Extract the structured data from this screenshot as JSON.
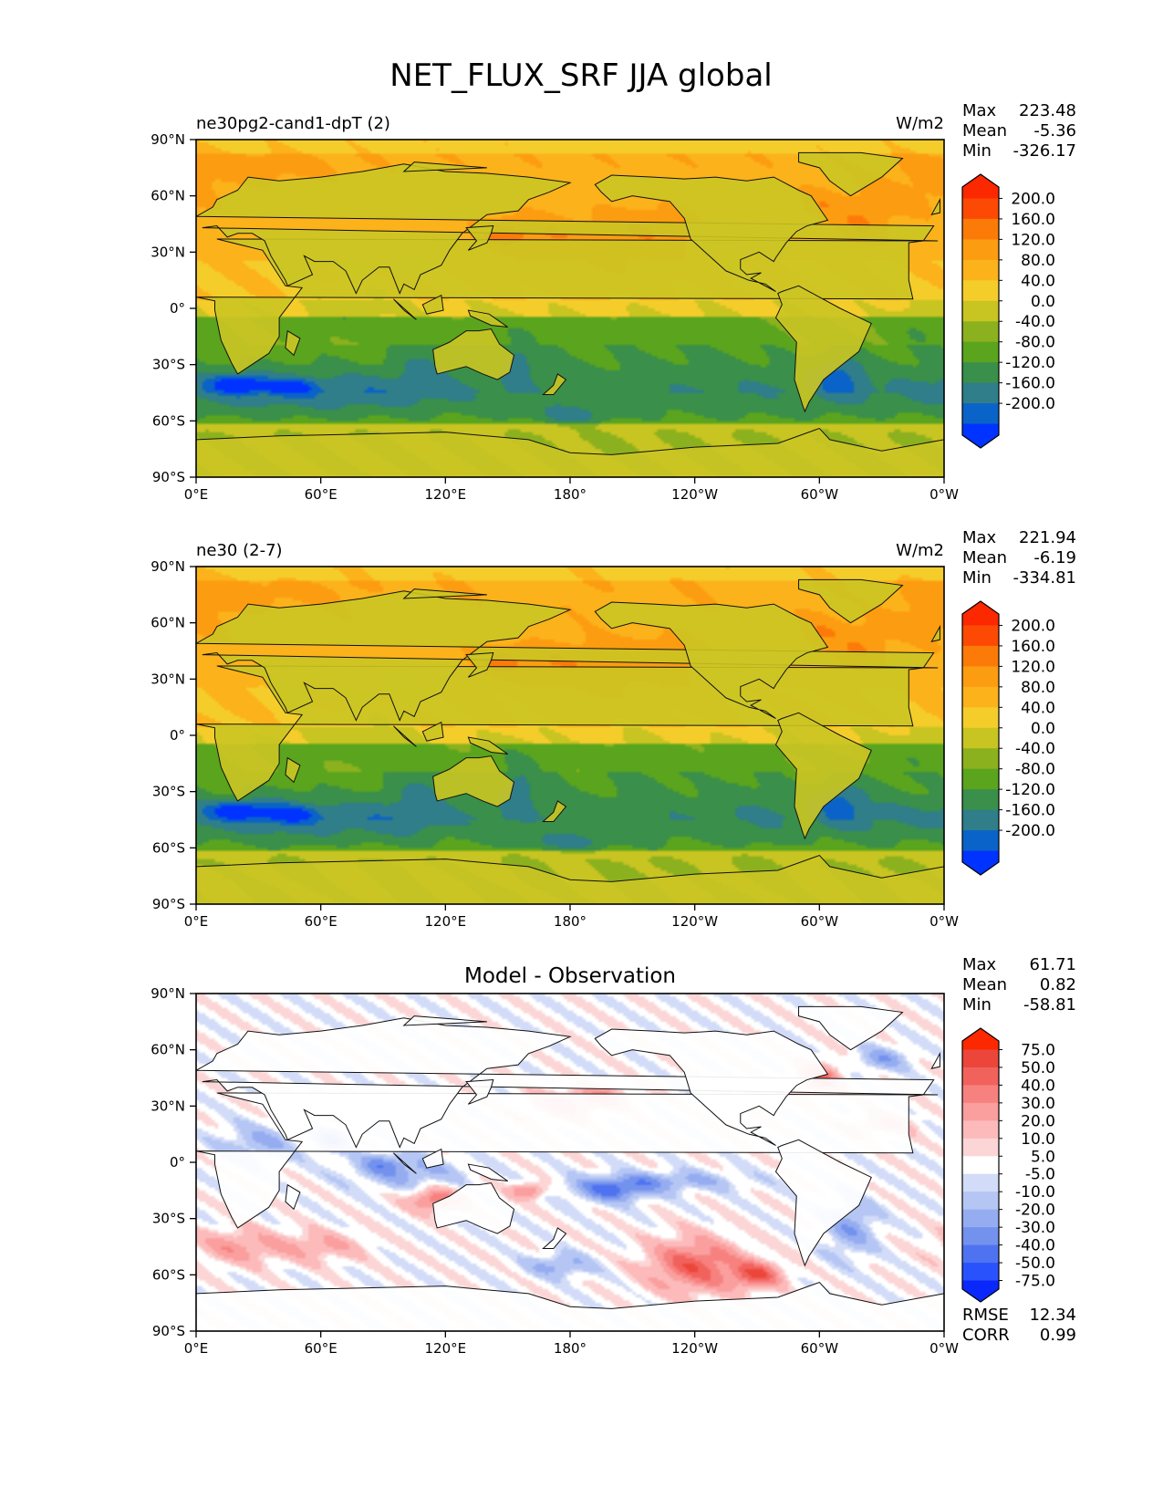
{
  "figure": {
    "title": "NET_FLUX_SRF JJA global"
  },
  "colors": {
    "continuous_scale": [
      "#0033ff",
      "#0a63c8",
      "#2f7e8a",
      "#3a8f4a",
      "#5aa41e",
      "#8cb11e",
      "#c8c421",
      "#f5cd2b",
      "#fcb21a",
      "#fc9c10",
      "#fc7a08",
      "#fc4a04",
      "#fc2800"
    ],
    "diff_scale": [
      "#0a28fc",
      "#2a52fc",
      "#4f73f0",
      "#7392ee",
      "#95adf0",
      "#b5c6f4",
      "#d2dcf8",
      "#ffffff",
      "#fcd6d6",
      "#fcbaba",
      "#fa9e9e",
      "#f7817f",
      "#f2625c",
      "#ec453a",
      "#fc2800"
    ],
    "land_continuous": "#cbc524",
    "land_diff": "#ffffff"
  },
  "panels": [
    {
      "id": "test",
      "left_title": "ne30pg2-cand1-dpT (2)",
      "center_title": "",
      "units": "W/m2",
      "stats": {
        "max_label": "Max",
        "max": "223.48",
        "mean_label": "Mean",
        "mean": "-5.36",
        "min_label": "Min",
        "min": "-326.17"
      }
    },
    {
      "id": "ref",
      "left_title": "ne30 (2-7)",
      "center_title": "",
      "units": "W/m2",
      "stats": {
        "max_label": "Max",
        "max": "221.94",
        "mean_label": "Mean",
        "mean": "-6.19",
        "min_label": "Min",
        "min": "-334.81"
      }
    },
    {
      "id": "diff",
      "left_title": "",
      "center_title": "Model - Observation",
      "units": "",
      "stats": {
        "max_label": "Max",
        "max": "61.71",
        "mean_label": "Mean",
        "mean": "0.82",
        "min_label": "Min",
        "min": "-58.81"
      },
      "extra_stats": {
        "rmse_label": "RMSE",
        "rmse": "12.34",
        "corr_label": "CORR",
        "corr": "0.99"
      }
    }
  ],
  "chart_data": [
    {
      "type": "heatmap",
      "title": "ne30pg2-cand1-dpT (2)",
      "units": "W/m2",
      "x_ticks": [
        "0°E",
        "60°E",
        "120°E",
        "180°",
        "120°W",
        "60°W",
        "0°W"
      ],
      "y_ticks": [
        "90°N",
        "60°N",
        "30°N",
        "0°",
        "30°S",
        "60°S",
        "90°S"
      ],
      "xlim": [
        0,
        360
      ],
      "ylim": [
        -90,
        90
      ],
      "colorbar_levels": [
        "200.0",
        "160.0",
        "120.0",
        "80.0",
        "40.0",
        "0.0",
        "-40.0",
        "-80.0",
        "-120.0",
        "-160.0",
        "-200.0"
      ],
      "colorbar_extend": "both",
      "stats": {
        "max": 223.48,
        "mean": -5.36,
        "min": -326.17
      }
    },
    {
      "type": "heatmap",
      "title": "ne30 (2-7)",
      "units": "W/m2",
      "x_ticks": [
        "0°E",
        "60°E",
        "120°E",
        "180°",
        "120°W",
        "60°W",
        "0°W"
      ],
      "y_ticks": [
        "90°N",
        "60°N",
        "30°N",
        "0°",
        "30°S",
        "60°S",
        "90°S"
      ],
      "xlim": [
        0,
        360
      ],
      "ylim": [
        -90,
        90
      ],
      "colorbar_levels": [
        "200.0",
        "160.0",
        "120.0",
        "80.0",
        "40.0",
        "0.0",
        "-40.0",
        "-80.0",
        "-120.0",
        "-160.0",
        "-200.0"
      ],
      "colorbar_extend": "both",
      "stats": {
        "max": 221.94,
        "mean": -6.19,
        "min": -334.81
      }
    },
    {
      "type": "heatmap",
      "title": "Model - Observation",
      "units": "",
      "x_ticks": [
        "0°E",
        "60°E",
        "120°E",
        "180°",
        "120°W",
        "60°W",
        "0°W"
      ],
      "y_ticks": [
        "90°N",
        "60°N",
        "30°N",
        "0°",
        "30°S",
        "60°S",
        "90°S"
      ],
      "xlim": [
        0,
        360
      ],
      "ylim": [
        -90,
        90
      ],
      "colorbar_levels": [
        "75.0",
        "50.0",
        "40.0",
        "30.0",
        "20.0",
        "10.0",
        "5.0",
        "-5.0",
        "-10.0",
        "-20.0",
        "-30.0",
        "-40.0",
        "-50.0",
        "-75.0"
      ],
      "colorbar_extend": "both",
      "stats": {
        "max": 61.71,
        "mean": 0.82,
        "min": -58.81,
        "rmse": 12.34,
        "corr": 0.99
      }
    }
  ]
}
